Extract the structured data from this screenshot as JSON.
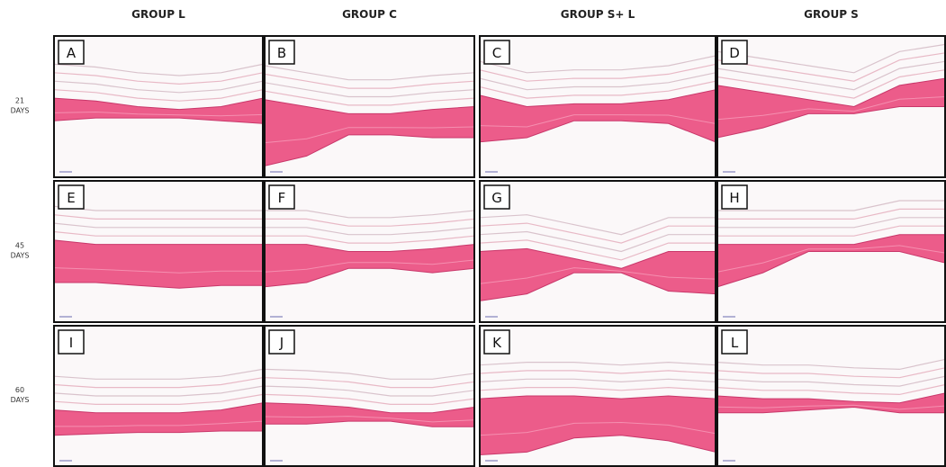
{
  "column_headers": [
    "GROUP L",
    "GROUP C",
    "GROUP S+ L",
    "GROUP S"
  ],
  "rows": [
    {
      "label_lines": [
        "21",
        "DAYS"
      ],
      "panels": [
        "A",
        "B",
        "C",
        "D"
      ]
    },
    {
      "label_lines": [
        "45",
        "DAYS"
      ],
      "panels": [
        "E",
        "F",
        "G",
        "H"
      ]
    },
    {
      "label_lines": [
        "60",
        "DAYS"
      ],
      "panels": [
        "I",
        "J",
        "K",
        "L"
      ]
    }
  ]
}
